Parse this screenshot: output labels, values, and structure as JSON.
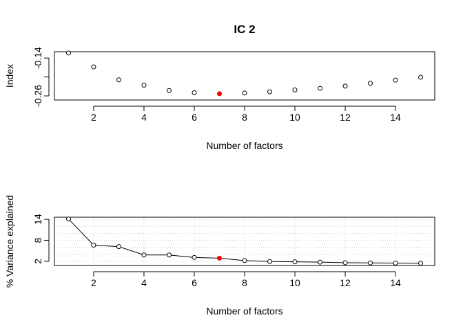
{
  "chart_data": [
    {
      "type": "scatter",
      "title": "IC 2",
      "xlabel": "Number of factors",
      "ylabel": "Index",
      "xlim": [
        0.44,
        15.56
      ],
      "ylim": [
        -0.273,
        -0.12
      ],
      "xticks": [
        2,
        4,
        6,
        8,
        10,
        12,
        14
      ],
      "yticks": [
        -0.26,
        -0.2,
        -0.14
      ],
      "ytick_labels": [
        "-0.26",
        "",
        "-0.14"
      ],
      "grid": false,
      "highlight_x": 7,
      "highlight_color": "#ff0000",
      "x": [
        1,
        2,
        3,
        4,
        5,
        6,
        7,
        8,
        9,
        10,
        11,
        12,
        13,
        14,
        15
      ],
      "y": [
        -0.124,
        -0.168,
        -0.209,
        -0.226,
        -0.243,
        -0.25,
        -0.253,
        -0.251,
        -0.247,
        -0.241,
        -0.236,
        -0.229,
        -0.22,
        -0.21,
        -0.201
      ]
    },
    {
      "type": "line",
      "title": "",
      "xlabel": "Number of factors",
      "ylabel": "% Variance explained",
      "xlim": [
        0.44,
        15.56
      ],
      "ylim": [
        0.8,
        14.6
      ],
      "xticks": [
        2,
        4,
        6,
        8,
        10,
        12,
        14
      ],
      "yticks": [
        2,
        8,
        14
      ],
      "ytick_labels": [
        "2",
        "8",
        "14"
      ],
      "grid": true,
      "highlight_x": 7,
      "highlight_color": "#ff0000",
      "x": [
        1,
        2,
        3,
        4,
        5,
        6,
        7,
        8,
        9,
        10,
        11,
        12,
        13,
        14,
        15
      ],
      "y": [
        14.1,
        6.6,
        6.2,
        3.8,
        3.8,
        3.1,
        2.9,
        2.2,
        1.95,
        1.85,
        1.75,
        1.6,
        1.55,
        1.5,
        1.45
      ]
    }
  ]
}
